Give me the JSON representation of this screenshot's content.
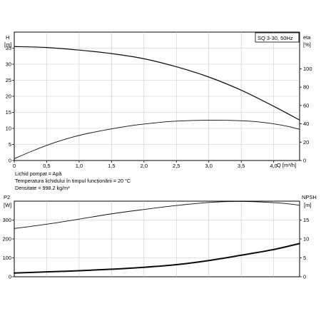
{
  "chart_data": [
    {
      "type": "line",
      "title_box": "SQ 3-30, 50Hz",
      "left_axis": {
        "name": "H",
        "unit": "[m]",
        "ticks": [
          "0",
          "5",
          "10",
          "15",
          "20",
          "25",
          "30",
          "35"
        ],
        "ylim": [
          0,
          40
        ]
      },
      "right_axis": {
        "name": "eta",
        "unit": "[%]",
        "ticks": [
          "0",
          "20",
          "40",
          "60",
          "80",
          "100"
        ],
        "ylim": [
          0,
          140
        ]
      },
      "x_axis": {
        "ticks": [
          "0",
          "0,5",
          "1,0",
          "1,5",
          "2,0",
          "2,5",
          "3,0",
          "3,5",
          "4,0"
        ],
        "unit_label": "Q [m³/h]",
        "xlim": [
          0,
          4.4
        ]
      },
      "series": [
        {
          "axis": "left",
          "stroke_width": 1.2,
          "x": [
            0,
            0.5,
            1.0,
            1.5,
            2.0,
            2.5,
            3.0,
            3.5,
            4.0,
            4.4
          ],
          "y": [
            35.5,
            35.2,
            34.4,
            33.3,
            31.7,
            29.2,
            26.0,
            21.9,
            16.9,
            12.6
          ]
        },
        {
          "axis": "right",
          "stroke_width": 0.9,
          "x": [
            0,
            0.3,
            0.6,
            0.9,
            1.2,
            1.5,
            1.8,
            2.1,
            2.4,
            2.7,
            3.0,
            3.3,
            3.6,
            3.9,
            4.2,
            4.4
          ],
          "y": [
            2,
            11,
            19,
            25.5,
            30.5,
            34.5,
            38,
            40.5,
            42.5,
            43.5,
            44,
            43.8,
            43,
            41,
            37.5,
            34
          ]
        }
      ],
      "notes": [
        "Lichid pompat = Apă",
        "Temperatura lichidului în timpul funcționării = 20 °C",
        "Densitate = 998.2 kg/m³"
      ]
    },
    {
      "type": "line",
      "left_axis": {
        "name": "P2",
        "unit": "[W]",
        "ticks": [
          "0",
          "100",
          "200",
          "300"
        ],
        "ylim": [
          0,
          400
        ]
      },
      "right_axis": {
        "name": "NPSH",
        "unit": "[m]",
        "ticks": [
          "0",
          "5",
          "10",
          "15"
        ],
        "ylim": [
          0,
          20
        ]
      },
      "x_axis": {
        "xlim": [
          0,
          4.4
        ]
      },
      "series": [
        {
          "axis": "left",
          "stroke_width": 0.9,
          "x": [
            0,
            0.5,
            1.0,
            1.5,
            2.0,
            2.5,
            3.0,
            3.3,
            3.6,
            3.9,
            4.2,
            4.4
          ],
          "y": [
            255,
            278,
            305,
            333,
            356,
            377,
            393,
            398,
            398,
            394,
            387,
            378
          ]
        },
        {
          "axis": "right",
          "stroke_width": 2.0,
          "x": [
            0,
            0.5,
            1.0,
            1.5,
            2.0,
            2.5,
            3.0,
            3.5,
            4.0,
            4.4
          ],
          "y": [
            1.0,
            1.3,
            1.6,
            2.0,
            2.5,
            3.2,
            4.3,
            5.7,
            7.2,
            8.8
          ]
        }
      ]
    }
  ]
}
